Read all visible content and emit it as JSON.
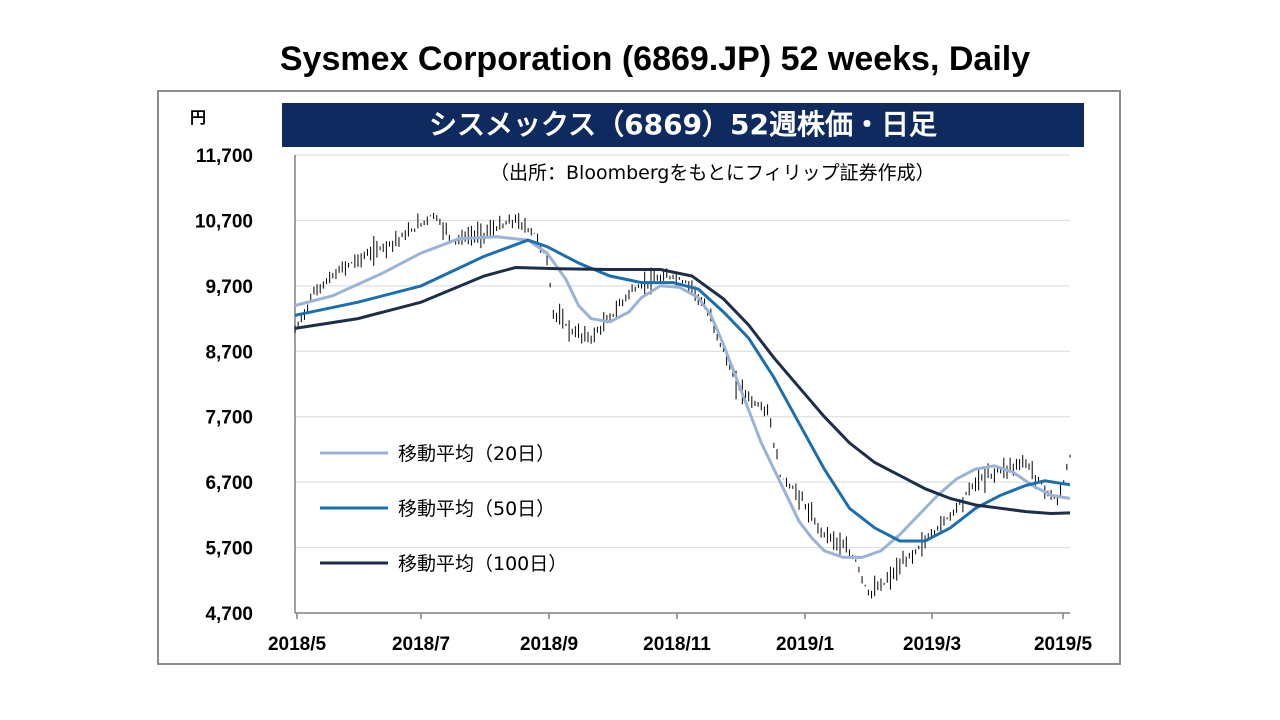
{
  "header": {
    "title": "Sysmex Corporation (6869.JP) 52 weeks, Daily",
    "jp_title": "シスメックス（6869）52週株価・日足",
    "source": "（出所：Bloombergをもとにフィリップ証券作成）",
    "unit": "円"
  },
  "chart_data": {
    "type": "line",
    "title": "シスメックス（6869）52週株価・日足",
    "ylabel": "円",
    "ylim": [
      4700,
      11700
    ],
    "yticks": [
      {
        "value": 4700,
        "label": "4,700"
      },
      {
        "value": 5700,
        "label": "5,700"
      },
      {
        "value": 6700,
        "label": "6,700"
      },
      {
        "value": 7700,
        "label": "7,700"
      },
      {
        "value": 8700,
        "label": "8,700"
      },
      {
        "value": 9700,
        "label": "9,700"
      },
      {
        "value": 10700,
        "label": "10,700"
      },
      {
        "value": 11700,
        "label": "11,700"
      }
    ],
    "xticks": [
      "2018/5",
      "2018/7",
      "2018/9",
      "2018/11",
      "2019/1",
      "2019/3",
      "2019/5"
    ],
    "x_range": [
      "2018/5",
      "2019/5"
    ],
    "grid": "horizontal",
    "legend_position": "left",
    "series": [
      {
        "name": "移動平均（20日）",
        "color": "#9bb3d6",
        "points": [
          [
            0,
            9400
          ],
          [
            6,
            9550
          ],
          [
            14,
            9900
          ],
          [
            20,
            10200
          ],
          [
            26,
            10420
          ],
          [
            32,
            10450
          ],
          [
            37,
            10400
          ],
          [
            40,
            10200
          ],
          [
            43,
            9800
          ],
          [
            45,
            9400
          ],
          [
            47,
            9200
          ],
          [
            50,
            9150
          ],
          [
            53,
            9300
          ],
          [
            55,
            9520
          ],
          [
            58,
            9700
          ],
          [
            61,
            9680
          ],
          [
            64,
            9520
          ],
          [
            66,
            9250
          ],
          [
            68,
            8800
          ],
          [
            70,
            8300
          ],
          [
            72,
            7800
          ],
          [
            74,
            7300
          ],
          [
            76,
            6900
          ],
          [
            78,
            6500
          ],
          [
            80,
            6100
          ],
          [
            82,
            5850
          ],
          [
            84,
            5650
          ],
          [
            87,
            5550
          ],
          [
            90,
            5550
          ],
          [
            93,
            5650
          ],
          [
            96,
            5900
          ],
          [
            99,
            6200
          ],
          [
            102,
            6500
          ],
          [
            105,
            6750
          ],
          [
            108,
            6900
          ],
          [
            111,
            6950
          ],
          [
            114,
            6850
          ],
          [
            117,
            6650
          ],
          [
            120,
            6500
          ],
          [
            123,
            6450
          ]
        ]
      },
      {
        "name": "移動平均（50日）",
        "color": "#1b6fb0",
        "points": [
          [
            0,
            9250
          ],
          [
            10,
            9450
          ],
          [
            20,
            9700
          ],
          [
            30,
            10150
          ],
          [
            37,
            10400
          ],
          [
            40,
            10300
          ],
          [
            45,
            10050
          ],
          [
            50,
            9850
          ],
          [
            55,
            9750
          ],
          [
            60,
            9750
          ],
          [
            64,
            9650
          ],
          [
            68,
            9300
          ],
          [
            72,
            8900
          ],
          [
            76,
            8300
          ],
          [
            80,
            7600
          ],
          [
            84,
            6900
          ],
          [
            88,
            6300
          ],
          [
            92,
            6000
          ],
          [
            96,
            5800
          ],
          [
            100,
            5800
          ],
          [
            104,
            6000
          ],
          [
            108,
            6300
          ],
          [
            112,
            6500
          ],
          [
            116,
            6650
          ],
          [
            119,
            6720
          ],
          [
            123,
            6660
          ]
        ]
      },
      {
        "name": "移動平均（100日）",
        "color": "#1c2e4a",
        "points": [
          [
            0,
            9050
          ],
          [
            10,
            9200
          ],
          [
            20,
            9450
          ],
          [
            30,
            9850
          ],
          [
            35,
            9980
          ],
          [
            42,
            9960
          ],
          [
            50,
            9950
          ],
          [
            58,
            9950
          ],
          [
            63,
            9850
          ],
          [
            68,
            9500
          ],
          [
            72,
            9100
          ],
          [
            76,
            8600
          ],
          [
            80,
            8150
          ],
          [
            84,
            7700
          ],
          [
            88,
            7300
          ],
          [
            92,
            7000
          ],
          [
            96,
            6800
          ],
          [
            100,
            6600
          ],
          [
            104,
            6450
          ],
          [
            108,
            6350
          ],
          [
            112,
            6300
          ],
          [
            116,
            6250
          ],
          [
            120,
            6220
          ],
          [
            123,
            6230
          ]
        ]
      }
    ],
    "price_range": [
      4800,
      11100
    ]
  },
  "legend": {
    "ma20": "移動平均（20日）",
    "ma50": "移動平均（50日）",
    "ma100": "移動平均（100日）"
  }
}
